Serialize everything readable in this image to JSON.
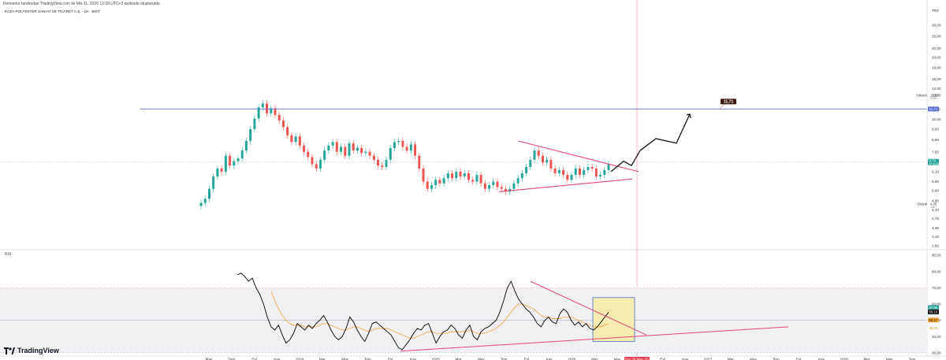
{
  "header": {
    "attribution": "Rerisenur tarafından TradingView.com ile Mis 11, 2026 12:09 UTC+3 tarihinde oluşturuldu",
    "symbol_title": "KOZA POLYESTER SANAYİ VE TİCARET A.Ş. · 1H · BIST",
    "currency": "TRY"
  },
  "footer": {
    "brand": "TradingView"
  },
  "colors": {
    "up": "#26a69a",
    "down": "#ef5350",
    "trendline": "#e0457b",
    "resistance": "#5b6cd6",
    "rsi_line": "#000000",
    "rsi_ma": "#f0a030",
    "last_price_bg": "#26a69a",
    "target_bg": "#3a1a0e",
    "box_fill": "#f7ecb0",
    "box_border": "#4a6fd0"
  },
  "chart_data": [
    {
      "type": "candlestick",
      "title": "",
      "scale": "log",
      "y_ticks": [
        "28,00",
        "25,00",
        "22,00",
        "20,00",
        "18,00",
        "16,00",
        "14,50",
        "13,50",
        "11,71",
        "10,50",
        "9,50",
        "8,50",
        "7,50",
        "6,70",
        "6,10",
        "5,50",
        "5,00",
        "4,50",
        "4,10",
        "3,75",
        "3,40",
        "3,10",
        "2,82"
      ],
      "x_ticks": [
        "May",
        "Tem",
        "Eyl",
        "Kas",
        "2024",
        "Mar",
        "May",
        "Tem",
        "Eyl",
        "Kas",
        "2025",
        "Mar",
        "May",
        "Tem",
        "Eyl",
        "Kas",
        "2026",
        "Mar",
        "May",
        "Tem",
        "Eyl",
        "Kas",
        "2027",
        "Mar",
        "May",
        "Tem",
        "Eyl",
        "Kas",
        "2028",
        "Mar",
        "May",
        "Tem"
      ],
      "x_cursor_label": "Per 28 May '26",
      "series_close": [
        4.4,
        4.6,
        5.1,
        5.8,
        6.3,
        6.1,
        7.2,
        6.5,
        6.8,
        7.0,
        7.6,
        8.4,
        9.5,
        10.6,
        11.9,
        12.4,
        11.2,
        11.8,
        11.0,
        10.4,
        9.7,
        8.9,
        8.3,
        8.8,
        8.0,
        7.5,
        7.1,
        6.6,
        6.3,
        6.9,
        7.6,
        8.0,
        8.3,
        7.5,
        7.9,
        7.2,
        8.2,
        7.6,
        7.8,
        7.4,
        7.5,
        7.2,
        6.9,
        6.5,
        6.4,
        6.9,
        7.8,
        8.3,
        8.4,
        7.9,
        7.6,
        8.1,
        7.2,
        6.3,
        5.5,
        5.1,
        5.3,
        5.6,
        5.4,
        5.7,
        6.0,
        5.7,
        6.1,
        5.8,
        6.0,
        5.6,
        5.5,
        5.9,
        5.4,
        5.1,
        5.3,
        5.5,
        5.2,
        5.1,
        4.95,
        5.1,
        5.4,
        5.7,
        6.0,
        6.4,
        6.9,
        7.6,
        7.2,
        6.7,
        6.9,
        6.3,
        6.0,
        6.2,
        5.9,
        5.6,
        5.9,
        6.3,
        5.9,
        6.2,
        6.4,
        6.3,
        5.8,
        5.9,
        6.2,
        6.6
      ],
      "resistance_level": 11.71,
      "target_label": "11,71",
      "last_price": "6,74",
      "last_price_sub": "47:34:48",
      "high_label": "Yüksek",
      "high_value": "13,50",
      "high_sub": "13,50",
      "low_label": "Düşük",
      "low_value": "4,35",
      "low_sub": "4,60",
      "projection_path": [
        6.1,
        6.8,
        6.5,
        7.6,
        8.6,
        8.2,
        11.1
      ],
      "triangle_upper": [
        8.4,
        6.1
      ],
      "triangle_lower": [
        4.95,
        5.65
      ]
    },
    {
      "type": "line",
      "title": "RSI",
      "ylim": [
        28,
        92
      ],
      "y_ticks": [
        "90,00",
        "80,00",
        "70,00",
        "60,00",
        "50,00",
        "40,00",
        "30,00"
      ],
      "upper_band": 70,
      "lower_band": 30,
      "mid_line": 50,
      "series": [
        {
          "name": "RSI",
          "values": [
            78,
            79,
            77,
            74,
            76,
            70,
            66,
            60,
            52,
            46,
            44,
            47,
            41,
            36,
            38,
            42,
            48,
            46,
            44,
            47,
            45,
            48,
            50,
            53,
            49,
            44,
            40,
            38,
            40,
            45,
            52,
            49,
            44,
            40,
            37,
            42,
            48,
            49,
            47,
            45,
            43,
            41,
            37,
            33,
            32,
            35,
            38,
            42,
            45,
            44,
            47,
            48,
            42,
            36,
            40,
            43,
            44,
            47,
            45,
            41,
            39,
            44,
            47,
            40,
            38,
            43,
            45,
            46,
            48,
            50,
            55,
            62,
            70,
            74,
            68,
            63,
            60,
            57,
            55,
            52,
            48,
            46,
            50,
            52,
            49,
            48,
            54,
            57,
            55,
            50,
            47,
            49,
            46,
            48,
            45,
            44,
            46,
            49,
            52,
            55
          ]
        },
        {
          "name": "RSI MA",
          "values": [
            null,
            null,
            null,
            null,
            null,
            null,
            null,
            null,
            null,
            68,
            62,
            57,
            53,
            50,
            48,
            47,
            47,
            47,
            46,
            46,
            46,
            46,
            47,
            48,
            48,
            47,
            46,
            45,
            44,
            44,
            45,
            46,
            46,
            45,
            44,
            43,
            44,
            45,
            45,
            45,
            45,
            44,
            43,
            42,
            41,
            40,
            39,
            39,
            40,
            41,
            42,
            43,
            43,
            42,
            42,
            42,
            42,
            43,
            43,
            43,
            43,
            43,
            44,
            43,
            42,
            42,
            42,
            43,
            44,
            45,
            47,
            49,
            52,
            55,
            58,
            60,
            60,
            59,
            58,
            57,
            55,
            53,
            52,
            52,
            51,
            51,
            51,
            52,
            52,
            52,
            51,
            50,
            49,
            48,
            47,
            46,
            46,
            46,
            47,
            48
          ]
        }
      ],
      "current_values": [
        "57,86",
        "55,13",
        "50,17",
        "45,23"
      ]
    }
  ]
}
